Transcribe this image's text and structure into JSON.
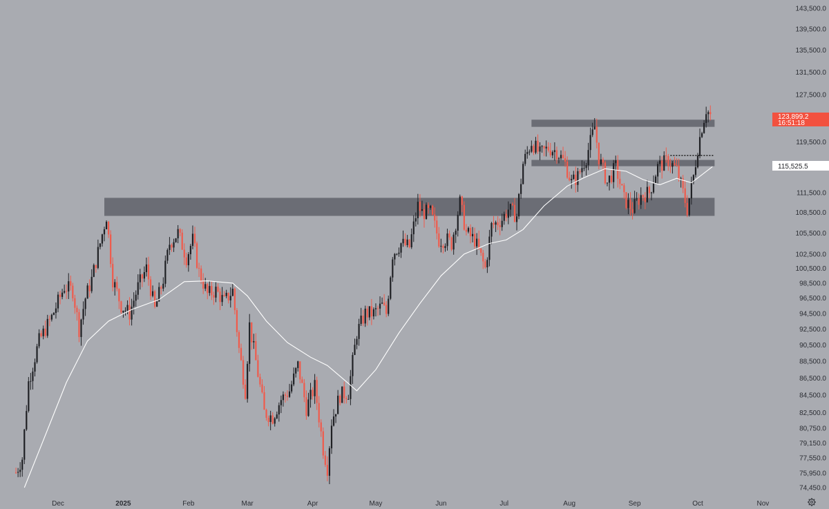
{
  "chart_data": {
    "type": "candlestick",
    "title": "",
    "xlabel": "",
    "ylabel": "",
    "y_scale": "log",
    "ylim": [
      73500,
      145000
    ],
    "y_ticks": [
      "143,500.0",
      "139,500.0",
      "135,500.0",
      "131,500.0",
      "127,500.0",
      "123,500.0",
      "119,500.0",
      "115,500.0",
      "111,500.0",
      "108,500.0",
      "105,500.0",
      "102,500.0",
      "100,500.0",
      "98,500.0",
      "96,500.0",
      "94,500.0",
      "92,500.0",
      "90,500.0",
      "88,500.0",
      "86,500.0",
      "84,500.0",
      "82,500.0",
      "80,750.0",
      "79,150.0",
      "77,550.0",
      "75,950.0",
      "74,450.0"
    ],
    "y_tick_values": [
      143500,
      139500,
      135500,
      131500,
      127500,
      123500,
      119500,
      115500,
      111500,
      108500,
      105500,
      102500,
      100500,
      98500,
      96500,
      94500,
      92500,
      90500,
      88500,
      86500,
      84500,
      82500,
      80750,
      79150,
      77550,
      75950,
      74450
    ],
    "x_ticks": [
      {
        "label": "Dec",
        "date": "2024-12-01",
        "bold": false
      },
      {
        "label": "2025",
        "date": "2025-01-01",
        "bold": true
      },
      {
        "label": "Feb",
        "date": "2025-02-01",
        "bold": false
      },
      {
        "label": "Mar",
        "date": "2025-03-01",
        "bold": false
      },
      {
        "label": "Apr",
        "date": "2025-04-01",
        "bold": false
      },
      {
        "label": "May",
        "date": "2025-05-01",
        "bold": false
      },
      {
        "label": "Jun",
        "date": "2025-06-01",
        "bold": false
      },
      {
        "label": "Jul",
        "date": "2025-07-01",
        "bold": false
      },
      {
        "label": "Aug",
        "date": "2025-08-01",
        "bold": false
      },
      {
        "label": "Sep",
        "date": "2025-09-01",
        "bold": false
      },
      {
        "label": "Oct",
        "date": "2025-10-01",
        "bold": false
      },
      {
        "label": "Nov",
        "date": "2025-11-01",
        "bold": false
      }
    ],
    "price_path": [
      {
        "date": "2024-11-11",
        "price": 76000
      },
      {
        "date": "2024-11-14",
        "price": 77500
      },
      {
        "date": "2024-11-17",
        "price": 86000
      },
      {
        "date": "2024-11-22",
        "price": 91000
      },
      {
        "date": "2024-11-28",
        "price": 94000
      },
      {
        "date": "2024-12-04",
        "price": 98000
      },
      {
        "date": "2024-12-08",
        "price": 97500
      },
      {
        "date": "2024-12-11",
        "price": 92500
      },
      {
        "date": "2024-12-14",
        "price": 96500
      },
      {
        "date": "2024-12-17",
        "price": 99000
      },
      {
        "date": "2024-12-21",
        "price": 104000
      },
      {
        "date": "2024-12-24",
        "price": 108000
      },
      {
        "date": "2024-12-27",
        "price": 99000
      },
      {
        "date": "2024-12-31",
        "price": 95500
      },
      {
        "date": "2025-01-04",
        "price": 94500
      },
      {
        "date": "2025-01-08",
        "price": 98000
      },
      {
        "date": "2025-01-12",
        "price": 100500
      },
      {
        "date": "2025-01-16",
        "price": 95000
      },
      {
        "date": "2025-01-20",
        "price": 99000
      },
      {
        "date": "2025-01-23",
        "price": 104000
      },
      {
        "date": "2025-01-27",
        "price": 105500
      },
      {
        "date": "2025-01-31",
        "price": 102000
      },
      {
        "date": "2025-02-03",
        "price": 104500
      },
      {
        "date": "2025-02-06",
        "price": 100000
      },
      {
        "date": "2025-02-10",
        "price": 97000
      },
      {
        "date": "2025-02-14",
        "price": 97500
      },
      {
        "date": "2025-02-18",
        "price": 96000
      },
      {
        "date": "2025-02-22",
        "price": 97500
      },
      {
        "date": "2025-02-25",
        "price": 90000
      },
      {
        "date": "2025-02-28",
        "price": 85000
      },
      {
        "date": "2025-03-02",
        "price": 93000
      },
      {
        "date": "2025-03-05",
        "price": 88500
      },
      {
        "date": "2025-03-09",
        "price": 82500
      },
      {
        "date": "2025-03-13",
        "price": 82000
      },
      {
        "date": "2025-03-17",
        "price": 84000
      },
      {
        "date": "2025-03-21",
        "price": 85000
      },
      {
        "date": "2025-03-25",
        "price": 88000
      },
      {
        "date": "2025-03-29",
        "price": 83000
      },
      {
        "date": "2025-04-02",
        "price": 85500
      },
      {
        "date": "2025-04-06",
        "price": 78500
      },
      {
        "date": "2025-04-08",
        "price": 76500
      },
      {
        "date": "2025-04-10",
        "price": 81500
      },
      {
        "date": "2025-04-14",
        "price": 84500
      },
      {
        "date": "2025-04-18",
        "price": 84800
      },
      {
        "date": "2025-04-22",
        "price": 92000
      },
      {
        "date": "2025-04-26",
        "price": 94500
      },
      {
        "date": "2025-04-30",
        "price": 94500
      },
      {
        "date": "2025-05-04",
        "price": 95500
      },
      {
        "date": "2025-05-06",
        "price": 94500
      },
      {
        "date": "2025-05-09",
        "price": 102500
      },
      {
        "date": "2025-05-13",
        "price": 104000
      },
      {
        "date": "2025-05-17",
        "price": 103500
      },
      {
        "date": "2025-05-21",
        "price": 109500
      },
      {
        "date": "2025-05-23",
        "price": 108500
      },
      {
        "date": "2025-05-27",
        "price": 108500
      },
      {
        "date": "2025-05-31",
        "price": 104500
      },
      {
        "date": "2025-06-04",
        "price": 104500
      },
      {
        "date": "2025-06-06",
        "price": 104000
      },
      {
        "date": "2025-06-10",
        "price": 110000
      },
      {
        "date": "2025-06-13",
        "price": 105500
      },
      {
        "date": "2025-06-17",
        "price": 104500
      },
      {
        "date": "2025-06-22",
        "price": 100500
      },
      {
        "date": "2025-06-25",
        "price": 106500
      },
      {
        "date": "2025-06-30",
        "price": 107500
      },
      {
        "date": "2025-07-03",
        "price": 109000
      },
      {
        "date": "2025-07-07",
        "price": 108000
      },
      {
        "date": "2025-07-10",
        "price": 116000
      },
      {
        "date": "2025-07-14",
        "price": 119500
      },
      {
        "date": "2025-07-18",
        "price": 117500
      },
      {
        "date": "2025-07-22",
        "price": 118500
      },
      {
        "date": "2025-07-26",
        "price": 118000
      },
      {
        "date": "2025-07-30",
        "price": 116000
      },
      {
        "date": "2025-08-02",
        "price": 113000
      },
      {
        "date": "2025-08-05",
        "price": 114000
      },
      {
        "date": "2025-08-09",
        "price": 117000
      },
      {
        "date": "2025-08-13",
        "price": 122000
      },
      {
        "date": "2025-08-15",
        "price": 117000
      },
      {
        "date": "2025-08-19",
        "price": 113000
      },
      {
        "date": "2025-08-23",
        "price": 115500
      },
      {
        "date": "2025-08-27",
        "price": 110500
      },
      {
        "date": "2025-08-31",
        "price": 109000
      },
      {
        "date": "2025-09-04",
        "price": 111000
      },
      {
        "date": "2025-09-08",
        "price": 111500
      },
      {
        "date": "2025-09-12",
        "price": 115500
      },
      {
        "date": "2025-09-17",
        "price": 116500
      },
      {
        "date": "2025-09-21",
        "price": 115000
      },
      {
        "date": "2025-09-24",
        "price": 111500
      },
      {
        "date": "2025-09-26",
        "price": 109000
      },
      {
        "date": "2025-09-29",
        "price": 114000
      },
      {
        "date": "2025-10-01",
        "price": 118500
      },
      {
        "date": "2025-10-03",
        "price": 122000
      },
      {
        "date": "2025-10-05",
        "price": 125000
      },
      {
        "date": "2025-10-07",
        "price": 123899.2
      }
    ],
    "moving_average": [
      {
        "date": "2024-11-15",
        "price": 74450
      },
      {
        "date": "2024-11-25",
        "price": 80000
      },
      {
        "date": "2024-12-05",
        "price": 86000
      },
      {
        "date": "2024-12-15",
        "price": 91000
      },
      {
        "date": "2024-12-25",
        "price": 93500
      },
      {
        "date": "2025-01-05",
        "price": 95000
      },
      {
        "date": "2025-01-18",
        "price": 96300
      },
      {
        "date": "2025-01-30",
        "price": 98700
      },
      {
        "date": "2025-02-10",
        "price": 98800
      },
      {
        "date": "2025-02-22",
        "price": 98500
      },
      {
        "date": "2025-03-01",
        "price": 96800
      },
      {
        "date": "2025-03-10",
        "price": 93500
      },
      {
        "date": "2025-03-20",
        "price": 90800
      },
      {
        "date": "2025-03-31",
        "price": 89000
      },
      {
        "date": "2025-04-08",
        "price": 88000
      },
      {
        "date": "2025-04-15",
        "price": 86500
      },
      {
        "date": "2025-04-22",
        "price": 85000
      },
      {
        "date": "2025-05-01",
        "price": 87500
      },
      {
        "date": "2025-05-12",
        "price": 92000
      },
      {
        "date": "2025-05-22",
        "price": 95800
      },
      {
        "date": "2025-06-01",
        "price": 99500
      },
      {
        "date": "2025-06-12",
        "price": 102500
      },
      {
        "date": "2025-06-24",
        "price": 104000
      },
      {
        "date": "2025-07-02",
        "price": 104500
      },
      {
        "date": "2025-07-10",
        "price": 106000
      },
      {
        "date": "2025-07-20",
        "price": 109500
      },
      {
        "date": "2025-07-31",
        "price": 112500
      },
      {
        "date": "2025-08-08",
        "price": 113800
      },
      {
        "date": "2025-08-18",
        "price": 115200
      },
      {
        "date": "2025-08-28",
        "price": 114800
      },
      {
        "date": "2025-09-05",
        "price": 113500
      },
      {
        "date": "2025-09-13",
        "price": 112700
      },
      {
        "date": "2025-09-21",
        "price": 113700
      },
      {
        "date": "2025-09-28",
        "price": 113000
      },
      {
        "date": "2025-10-08",
        "price": 115525.5
      }
    ],
    "zones": [
      {
        "from_date": "2024-12-23",
        "to_date": "2025-10-09",
        "low": 108000,
        "high": 110700
      },
      {
        "from_date": "2025-07-14",
        "to_date": "2025-10-09",
        "low": 122000,
        "high": 123200
      },
      {
        "from_date": "2025-07-14",
        "to_date": "2025-10-09",
        "low": 115600,
        "high": 116600
      }
    ],
    "reference_lines": [
      {
        "from_date": "2025-09-18",
        "to_date": "2025-10-09",
        "price": 117300,
        "style": "dotted"
      }
    ],
    "last_price": "123,899.2",
    "countdown": "16:51:18",
    "ma_value": "115,525.5",
    "colors": {
      "background": "#a9abb1",
      "up_candle": "#1f2024",
      "down_candle": "#f05a4b",
      "moving_average": "#ffffff",
      "zone": "#60626b",
      "price_badge": "#f2513f",
      "ma_badge": "#ffffff"
    }
  },
  "ui": {
    "settings_icon": "gear-icon"
  }
}
